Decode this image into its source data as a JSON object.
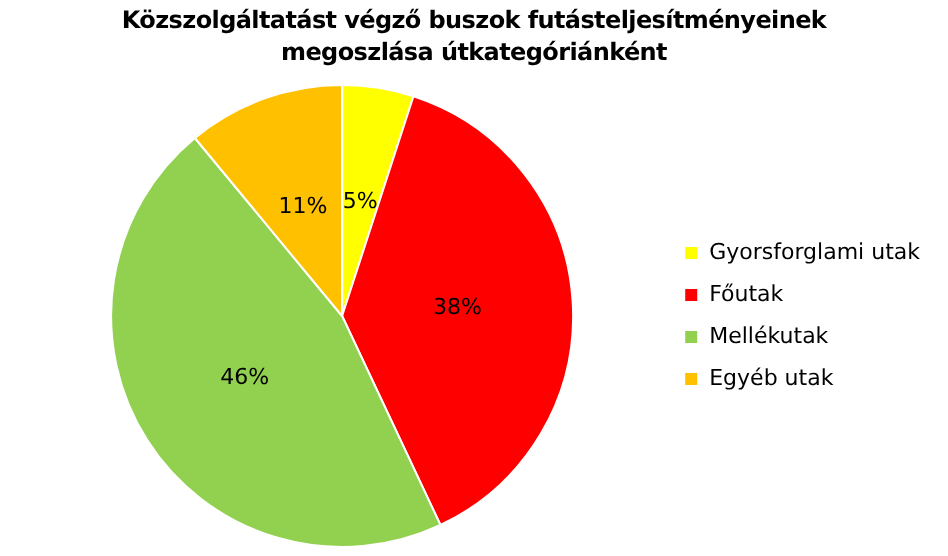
{
  "chart_data": {
    "type": "pie",
    "title": "Közszolgáltatást végző buszok futásteljesítményeinek megoszlása útkategóriánként",
    "categories": [
      "Gyorsforglami utak",
      "Főutak",
      "Mellékutak",
      "Egyéb utak"
    ],
    "values": [
      5,
      38,
      46,
      11
    ],
    "colors": [
      "#ffff00",
      "#ff0000",
      "#92d050",
      "#ffc000"
    ],
    "value_labels": [
      "5%",
      "38%",
      "46%",
      "11%"
    ],
    "legend": "right"
  }
}
